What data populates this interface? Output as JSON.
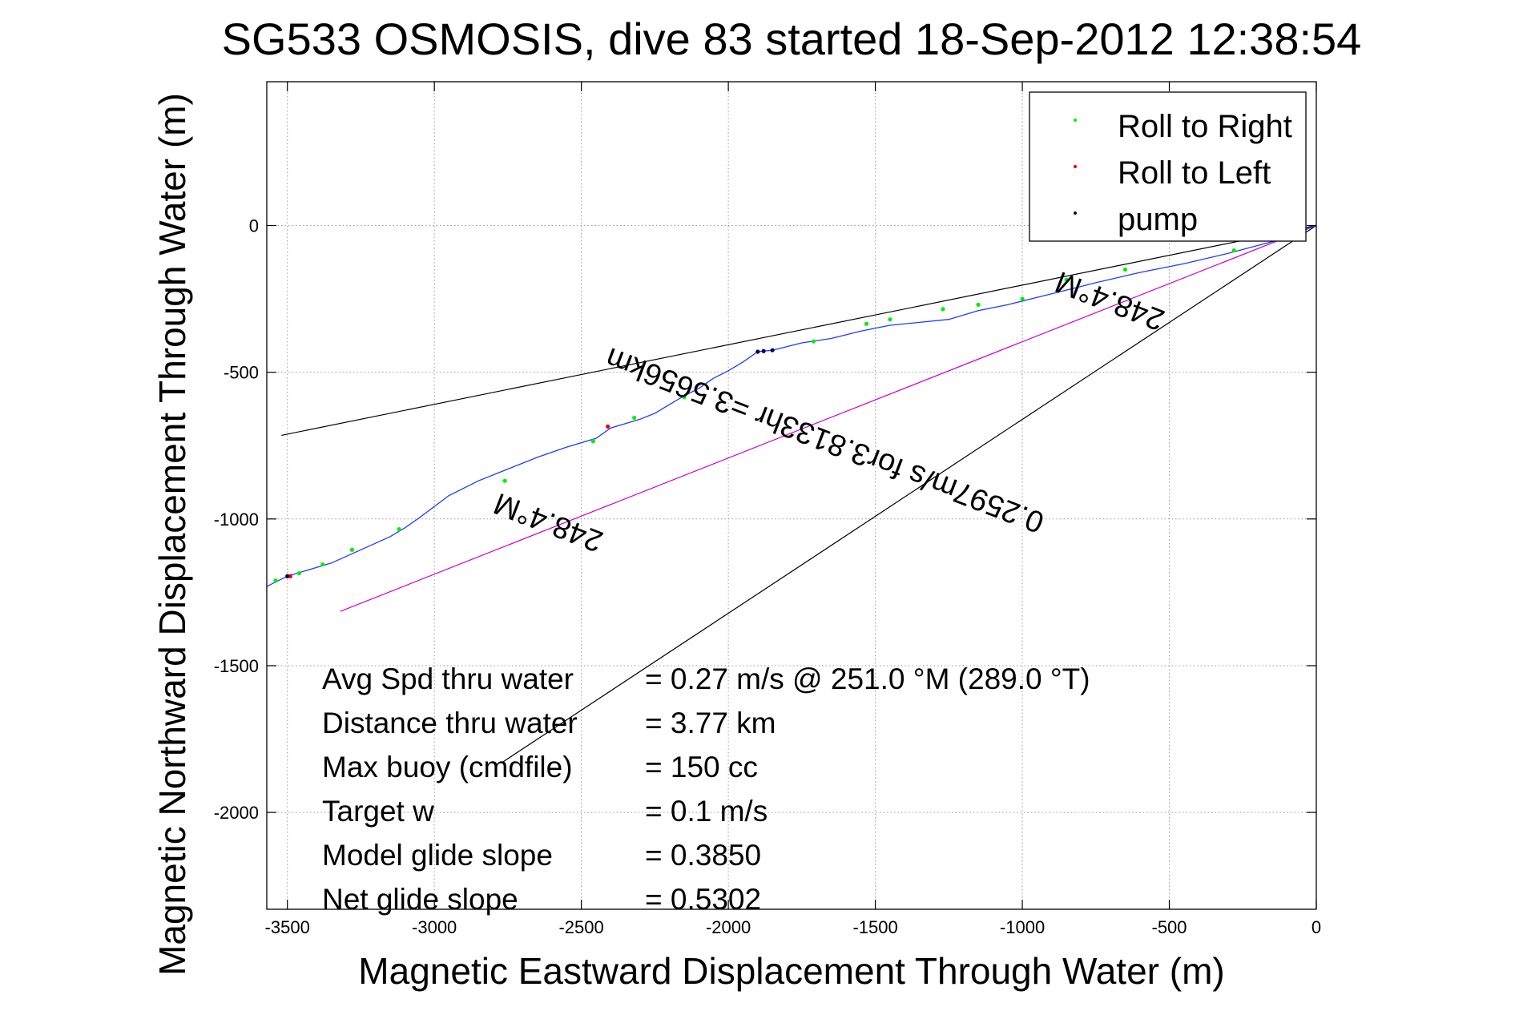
{
  "chart_data": {
    "type": "line",
    "title": "SG533 OSMOSIS, dive 83 started 18-Sep-2012 12:38:54",
    "xlabel": "Magnetic Eastward Displacement Through Water (m)",
    "ylabel": "Magnetic Northward Displacement Through Water (m)",
    "xlim": [
      -3570,
      0
    ],
    "ylim": [
      -2330,
      490
    ],
    "xticks": [
      -3500,
      -3000,
      -2500,
      -2000,
      -1500,
      -1000,
      -500,
      0
    ],
    "yticks": [
      -2000,
      -1500,
      -1000,
      -500,
      0
    ],
    "xtick_labels": [
      "-3500",
      "-3000",
      "-2500",
      "-2000",
      "-1500",
      "-1000",
      "-500",
      "0"
    ],
    "ytick_labels": [
      "-2000",
      "-1500",
      "-1000",
      "-500",
      "0"
    ],
    "grid": true,
    "legend_position": "top-right",
    "legend": [
      {
        "label": "Roll to Right",
        "color": "#00ee00"
      },
      {
        "label": "Roll to Left",
        "color": "#ee0000"
      },
      {
        "label": "pump",
        "color": "#000066"
      }
    ],
    "track": {
      "color": "#1f3bff",
      "x": [
        0,
        -150,
        -300,
        -450,
        -600,
        -750,
        -850,
        -950,
        -1050,
        -1150,
        -1250,
        -1350,
        -1450,
        -1550,
        -1650,
        -1750,
        -1850,
        -1900,
        -1950,
        -2000,
        -2050,
        -2100,
        -2150,
        -2200,
        -2250,
        -2300,
        -2350,
        -2400,
        -2450,
        -2550,
        -2650,
        -2750,
        -2850,
        -2950,
        -3050,
        -3100,
        -3150,
        -3250,
        -3350,
        -3450,
        -3500,
        -3570
      ],
      "y": [
        0,
        -55,
        -95,
        -130,
        -160,
        -195,
        -220,
        -245,
        -270,
        -290,
        -320,
        -330,
        -340,
        -360,
        -385,
        -400,
        -425,
        -430,
        -465,
        -495,
        -520,
        -555,
        -580,
        -610,
        -640,
        -660,
        -675,
        -690,
        -725,
        -755,
        -790,
        -830,
        -870,
        -920,
        -995,
        -1030,
        -1060,
        -1105,
        -1150,
        -1180,
        -1195,
        -1230
      ]
    },
    "roll_right": {
      "x": [
        -100,
        -280,
        -650,
        -850,
        -1000,
        -1150,
        -1270,
        -1450,
        -1530,
        -1710,
        -2150,
        -2320,
        -2460,
        -2760,
        -3120,
        -3280,
        -3380,
        -3460,
        -3540
      ],
      "y": [
        -40,
        -85,
        -150,
        -185,
        -250,
        -270,
        -285,
        -320,
        -335,
        -395,
        -585,
        -655,
        -735,
        -870,
        -1035,
        -1105,
        -1155,
        -1185,
        -1210
      ]
    },
    "roll_left": {
      "x": [
        -2410,
        -3490
      ],
      "y": [
        -685,
        -1195
      ]
    },
    "pump": {
      "x": [
        -1850,
        -1880,
        -1900,
        -3500
      ],
      "y": [
        -425,
        -428,
        -430,
        -1195
      ]
    },
    "heading_lines": [
      {
        "color": "#000000",
        "x": [
          -3520,
          0
        ],
        "y": [
          -715,
          0
        ]
      },
      {
        "color": "#000000",
        "x": [
          -2770,
          0
        ],
        "y": [
          -1830,
          0
        ]
      },
      {
        "color": "#cc00cc",
        "x": [
          -3320,
          0
        ],
        "y": [
          -1315,
          0
        ]
      }
    ],
    "annotations": [
      {
        "text": "248.4°M",
        "x": -2600,
        "y": -980,
        "angle": 201
      },
      {
        "text": "0.2597m/s for3.8133hr =3.5656km",
        "x": -1660,
        "y": -700,
        "angle": 201
      },
      {
        "text": "248.4°M",
        "x": -690,
        "y": -225,
        "angle": 201
      }
    ],
    "stats": [
      {
        "label": "Avg Spd thru water",
        "value": "=  0.27 m/s @ 251.0 °M (289.0 °T)"
      },
      {
        "label": "Distance thru water",
        "value": "=  3.77 km"
      },
      {
        "label": "Max buoy (cmdfile)",
        "value": "= 150 cc"
      },
      {
        "label": "Target w",
        "value": "= 0.1 m/s"
      },
      {
        "label": "Model glide slope",
        "value": "= 0.3850"
      },
      {
        "label": "Net glide slope",
        "value": "= 0.5302"
      }
    ]
  }
}
